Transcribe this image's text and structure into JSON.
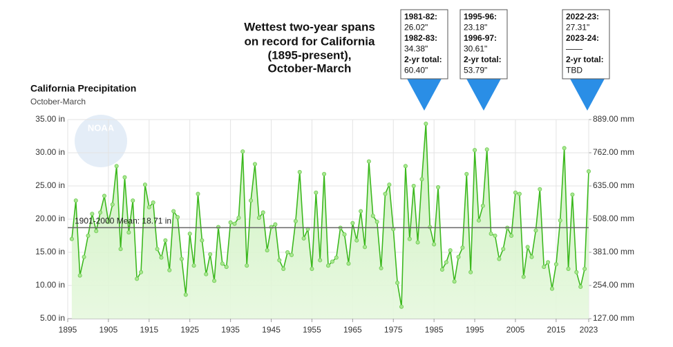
{
  "chart_data": {
    "type": "line",
    "title": [
      "Wettest two-year spans",
      "on record for California",
      "(1895-present),",
      "October-March"
    ],
    "chart_title": "California Precipitation",
    "subtitle": "October-March",
    "logo": "NOAA",
    "x": [
      1896,
      1897,
      1898,
      1899,
      1900,
      1901,
      1902,
      1903,
      1904,
      1905,
      1906,
      1907,
      1908,
      1909,
      1910,
      1911,
      1912,
      1913,
      1914,
      1915,
      1916,
      1917,
      1918,
      1919,
      1920,
      1921,
      1922,
      1923,
      1924,
      1925,
      1926,
      1927,
      1928,
      1929,
      1930,
      1931,
      1932,
      1933,
      1934,
      1935,
      1936,
      1937,
      1938,
      1939,
      1940,
      1941,
      1942,
      1943,
      1944,
      1945,
      1946,
      1947,
      1948,
      1949,
      1950,
      1951,
      1952,
      1953,
      1954,
      1955,
      1956,
      1957,
      1958,
      1959,
      1960,
      1961,
      1962,
      1963,
      1964,
      1965,
      1966,
      1967,
      1968,
      1969,
      1970,
      1971,
      1972,
      1973,
      1974,
      1975,
      1976,
      1977,
      1978,
      1979,
      1980,
      1981,
      1982,
      1983,
      1984,
      1985,
      1986,
      1987,
      1988,
      1989,
      1990,
      1991,
      1992,
      1993,
      1994,
      1995,
      1996,
      1997,
      1998,
      1999,
      2000,
      2001,
      2002,
      2003,
      2004,
      2005,
      2006,
      2007,
      2008,
      2009,
      2010,
      2011,
      2012,
      2013,
      2014,
      2015,
      2016,
      2017,
      2018,
      2019,
      2020,
      2021,
      2022,
      2023
    ],
    "series": [
      {
        "name": "California Precipitation",
        "color": "#3cb81e",
        "values": [
          17.0,
          22.8,
          11.5,
          14.3,
          17.5,
          20.8,
          18.2,
          21.0,
          23.5,
          19.6,
          22.2,
          28.0,
          15.5,
          26.3,
          18.0,
          22.8,
          11.0,
          12.0,
          25.2,
          21.8,
          22.5,
          15.5,
          14.2,
          16.8,
          12.3,
          21.2,
          20.3,
          14.0,
          8.6,
          17.8,
          13.0,
          23.8,
          16.8,
          11.7,
          14.7,
          10.7,
          18.8,
          13.3,
          12.8,
          19.5,
          19.3,
          20.2,
          30.2,
          13.0,
          22.8,
          28.3,
          20.2,
          21.0,
          15.3,
          18.8,
          19.2,
          13.8,
          12.5,
          15.0,
          14.6,
          19.7,
          27.1,
          17.1,
          18.5,
          12.5,
          24.0,
          13.8,
          26.8,
          13.0,
          13.6,
          14.2,
          18.7,
          17.7,
          13.3,
          19.4,
          16.8,
          21.2,
          15.8,
          28.7,
          20.5,
          19.6,
          12.6,
          23.8,
          25.2,
          18.5,
          10.4,
          6.8,
          28.0,
          17.0,
          25.0,
          16.5,
          26.02,
          34.38,
          18.8,
          16.2,
          24.8,
          12.4,
          13.5,
          15.3,
          10.6,
          14.3,
          15.7,
          26.8,
          12.0,
          30.4,
          19.8,
          22.0,
          30.5,
          17.8,
          17.5,
          14.0,
          15.5,
          18.7,
          17.5,
          24.0,
          23.8,
          11.3,
          15.8,
          14.3,
          18.3,
          24.5,
          12.8,
          13.5,
          9.5,
          13.2,
          19.8,
          30.7,
          12.5,
          23.7,
          12.0,
          9.8,
          12.5,
          27.2
        ]
      }
    ],
    "mean": 18.71,
    "mean_label": "1901-2000 Mean: 18.71 in",
    "xlim": [
      1895,
      2023
    ],
    "xticks": [
      1895,
      1905,
      1915,
      1925,
      1935,
      1945,
      1955,
      1965,
      1975,
      1985,
      1995,
      2005,
      2015,
      2023
    ],
    "ylim": [
      5,
      35
    ],
    "yticks": [
      {
        "value": 5,
        "label": "5.00 in"
      },
      {
        "value": 10,
        "label": "10.00 in"
      },
      {
        "value": 15,
        "label": "15.00 in"
      },
      {
        "value": 20,
        "label": "20.00 in"
      },
      {
        "value": 25,
        "label": "25.00 in"
      },
      {
        "value": 30,
        "label": "30.00 in"
      },
      {
        "value": 35,
        "label": "35.00 in"
      }
    ],
    "y2lim": [
      127,
      889
    ],
    "y2ticks": [
      {
        "value": 127,
        "label": "127.00 mm"
      },
      {
        "value": 254,
        "label": "254.00 mm"
      },
      {
        "value": 381,
        "label": "381.00 mm"
      },
      {
        "value": 508,
        "label": "508.00 mm"
      },
      {
        "value": 635,
        "label": "635.00 mm"
      },
      {
        "value": 762,
        "label": "762.00 mm"
      },
      {
        "value": 889,
        "label": "889.00 mm"
      }
    ],
    "grid": true,
    "annotations": [
      {
        "lines": [
          "1981-82:",
          "26.02\"",
          "1982-83:",
          "34.38\"",
          "2-yr total:",
          "60.40\""
        ]
      },
      {
        "lines": [
          "1995-96:",
          "23.18\"",
          "1996-97:",
          "30.61\"",
          "2-yr total:",
          "53.79\""
        ]
      },
      {
        "lines": [
          "2022-23:",
          "27.31\"",
          "2023-24:",
          "——",
          "2-yr total:",
          "TBD"
        ]
      }
    ]
  }
}
